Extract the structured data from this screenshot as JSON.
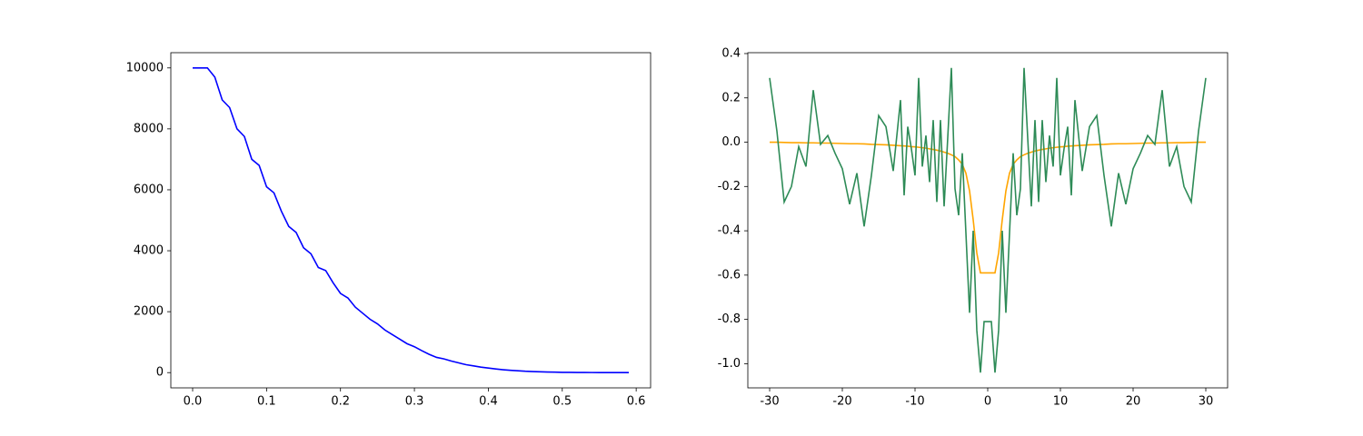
{
  "chart_data": [
    {
      "type": "line",
      "x": [
        0,
        0.01,
        0.02,
        0.03,
        0.04,
        0.05,
        0.06,
        0.07,
        0.08,
        0.09,
        0.1,
        0.11,
        0.12,
        0.13,
        0.14,
        0.15,
        0.16,
        0.17,
        0.18,
        0.19,
        0.2,
        0.21,
        0.22,
        0.23,
        0.24,
        0.25,
        0.26,
        0.27,
        0.28,
        0.29,
        0.3,
        0.31,
        0.32,
        0.33,
        0.34,
        0.35,
        0.36,
        0.37,
        0.38,
        0.39,
        0.4,
        0.41,
        0.42,
        0.43,
        0.44,
        0.45,
        0.46,
        0.47,
        0.48,
        0.49,
        0.5,
        0.51,
        0.52,
        0.53,
        0.54,
        0.55,
        0.56,
        0.57,
        0.58,
        0.59
      ],
      "series": [
        {
          "color": "#0000ff",
          "values": [
            10000,
            10000,
            10000,
            9700,
            8950,
            8700,
            8000,
            7750,
            7000,
            6800,
            6100,
            5900,
            5300,
            4800,
            4600,
            4100,
            3900,
            3450,
            3350,
            2950,
            2600,
            2450,
            2150,
            1950,
            1750,
            1600,
            1400,
            1250,
            1100,
            950,
            850,
            720,
            600,
            500,
            450,
            380,
            320,
            260,
            220,
            180,
            150,
            120,
            95,
            75,
            60,
            45,
            35,
            28,
            20,
            15,
            10,
            8,
            6,
            4,
            3,
            2,
            1,
            1,
            0,
            0
          ]
        }
      ],
      "xlim": [
        -0.0295,
        0.6195
      ],
      "xticks": [
        {
          "value": 0,
          "label": "0.0"
        },
        0.1,
        0.2,
        0.3,
        0.4,
        0.5,
        0.6
      ],
      "ylim": [
        -500,
        10500
      ],
      "yticks": [
        0,
        2000,
        4000,
        6000,
        8000,
        10000
      ]
    },
    {
      "type": "line",
      "x": [
        -30,
        -29,
        -28,
        -27,
        -26,
        -25,
        -24,
        -23,
        -22,
        -21,
        -20,
        -19,
        -18,
        -17,
        -16,
        -15,
        -14,
        -13,
        -12,
        -11.5,
        -11,
        -10.5,
        -10,
        -9.5,
        -9,
        -8.5,
        -8,
        -7.5,
        -7,
        -6.5,
        -6,
        -5.5,
        -5,
        -4.5,
        -4,
        -3.5,
        -3,
        -2.5,
        -2,
        -1.5,
        -1,
        -0.5,
        0,
        0.5,
        1,
        1.5,
        2,
        2.5,
        3,
        3.5,
        4,
        4.5,
        5,
        5.5,
        6,
        6.5,
        7,
        7.5,
        8,
        8.5,
        9,
        9.5,
        10,
        10.5,
        11,
        11.5,
        12,
        13,
        14,
        15,
        16,
        17,
        18,
        19,
        20,
        21,
        22,
        23,
        24,
        25,
        26,
        27,
        28,
        29,
        30
      ],
      "series": [
        {
          "color": "#ffa500",
          "values": [
            0,
            0,
            -0.001,
            -0.002,
            -0.002,
            -0.003,
            -0.003,
            -0.004,
            -0.004,
            -0.005,
            -0.006,
            -0.007,
            -0.007,
            -0.008,
            -0.01,
            -0.011,
            -0.012,
            -0.014,
            -0.016,
            -0.017,
            -0.018,
            -0.02,
            -0.021,
            -0.023,
            -0.025,
            -0.027,
            -0.03,
            -0.033,
            -0.036,
            -0.04,
            -0.045,
            -0.05,
            -0.057,
            -0.065,
            -0.08,
            -0.1,
            -0.14,
            -0.22,
            -0.35,
            -0.5,
            -0.59,
            -0.59,
            -0.59,
            -0.59,
            -0.59,
            -0.5,
            -0.35,
            -0.22,
            -0.14,
            -0.1,
            -0.08,
            -0.065,
            -0.057,
            -0.05,
            -0.045,
            -0.04,
            -0.036,
            -0.033,
            -0.03,
            -0.027,
            -0.025,
            -0.023,
            -0.021,
            -0.02,
            -0.018,
            -0.017,
            -0.016,
            -0.014,
            -0.012,
            -0.011,
            -0.01,
            -0.008,
            -0.007,
            -0.007,
            -0.006,
            -0.005,
            -0.004,
            -0.004,
            -0.003,
            -0.003,
            -0.002,
            -0.002,
            -0.001,
            0,
            0
          ]
        },
        {
          "color": "#2e8b57",
          "values": [
            0.29,
            0.05,
            -0.27,
            -0.2,
            -0.02,
            -0.11,
            0.235,
            -0.01,
            0.03,
            -0.05,
            -0.12,
            -0.28,
            -0.14,
            -0.38,
            -0.15,
            0.12,
            0.07,
            -0.13,
            0.19,
            -0.24,
            0.07,
            -0.03,
            -0.15,
            0.29,
            -0.11,
            0.03,
            -0.18,
            0.1,
            -0.27,
            0.1,
            -0.29,
            0.02,
            0.335,
            -0.21,
            -0.33,
            -0.05,
            -0.41,
            -0.77,
            -0.4,
            -0.85,
            -1.04,
            -0.81,
            -0.81,
            -0.81,
            -1.04,
            -0.85,
            -0.4,
            -0.77,
            -0.41,
            -0.05,
            -0.33,
            -0.21,
            0.335,
            0.02,
            -0.29,
            0.1,
            -0.27,
            0.1,
            -0.18,
            0.03,
            -0.11,
            0.29,
            -0.15,
            -0.03,
            0.07,
            -0.24,
            0.19,
            -0.13,
            0.07,
            0.12,
            -0.15,
            -0.38,
            -0.14,
            -0.28,
            -0.12,
            -0.05,
            0.03,
            -0.01,
            0.235,
            -0.11,
            -0.02,
            -0.2,
            -0.27,
            0.05,
            0.29
          ]
        }
      ],
      "xlim": [
        -33,
        33
      ],
      "xticks": [
        -30,
        -20,
        -10,
        0,
        10,
        20,
        30
      ],
      "ylim": [
        -1.109,
        0.404
      ],
      "yticks": [
        0.4,
        0.2,
        {
          "value": 0,
          "label": "0.0"
        },
        -0.2,
        -0.4,
        -0.6,
        -0.8,
        {
          "value": -1,
          "label": "-1.0"
        }
      ]
    }
  ]
}
